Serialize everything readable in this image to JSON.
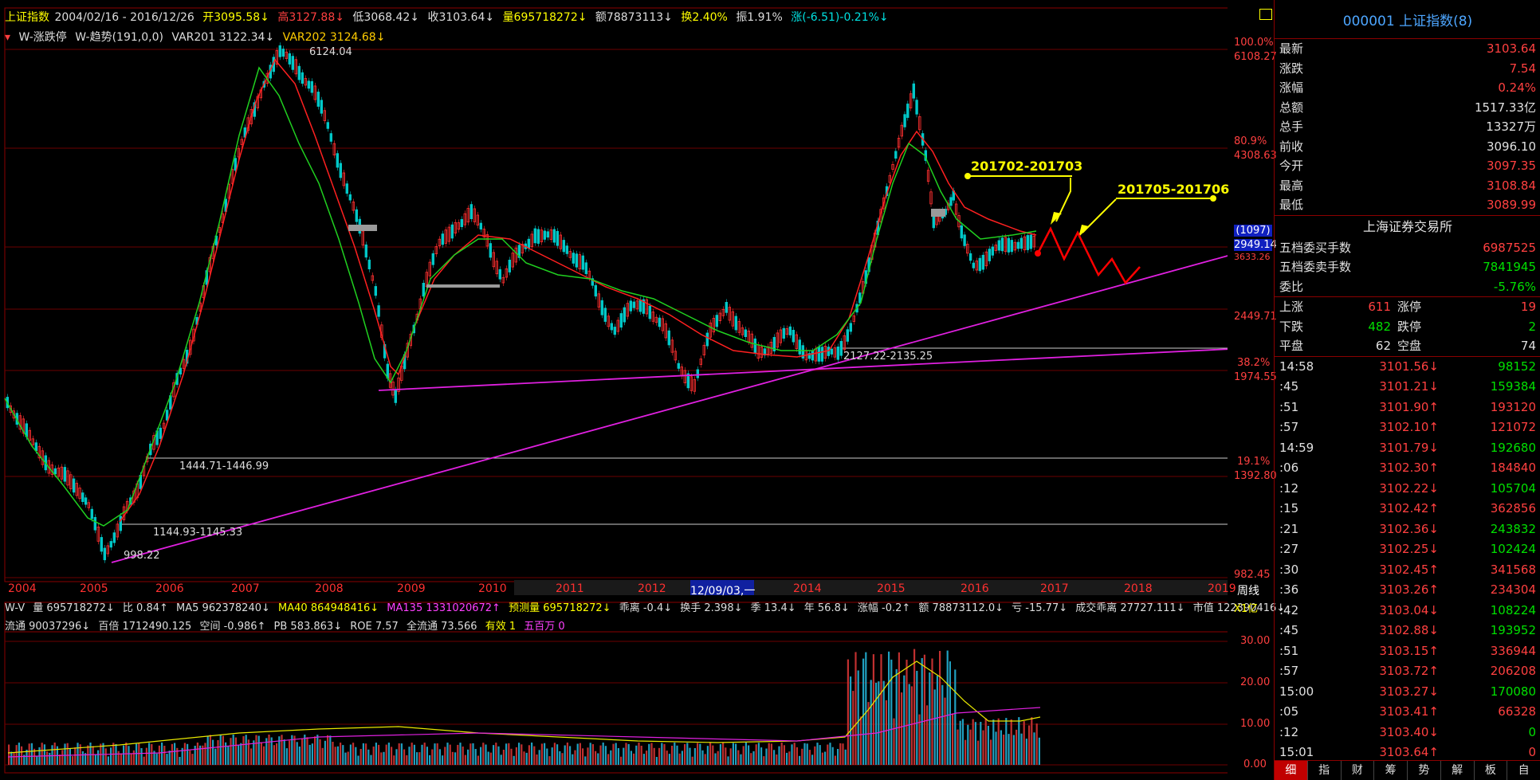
{
  "header": {
    "index_name": "上证指数",
    "date_range": "2004/02/16 - 2016/12/26",
    "open": "开3095.58↓",
    "high": "高3127.88↓",
    "low": "低3068.42↓",
    "close": "收3103.64↓",
    "volume": "量695718272↓",
    "amount": "额78873113↓",
    "turnover": "换2.40%",
    "amplitude": "振1.91%",
    "change": "涨(-6.51)-0.21%↓"
  },
  "indicators_line": {
    "a": "W-涨跌停",
    "b": "W-趋势(191,0,0)",
    "c": "VAR201 3122.34↓",
    "d": "VAR202 3124.68↓"
  },
  "price_axis": {
    "pct100": "100.0%",
    "p6108": "6108.27",
    "pct80": "80.9%",
    "p4308": "4308.63",
    "cur_vol": "(1097)",
    "cur_price": "2949.14",
    "p3633": "3633.26",
    "p2449": "2449.71",
    "pct38": "38.2%",
    "p1974": "1974.55",
    "pct19": "19.1%",
    "p1392": "1392.80",
    "p982": "982.45"
  },
  "chart_labels": {
    "peak": "6124.04",
    "low2005": "998.22",
    "range1": "1444.71-1446.99",
    "range2": "1144.93-1145.33",
    "range3": "2127.22-2135.25",
    "proj1": "201702-201703",
    "proj2": "201705-201706"
  },
  "years": [
    "2004",
    "2005",
    "2006",
    "2007",
    "2008",
    "2009",
    "2010",
    "2011",
    "2012",
    "12/09/03,一",
    "2014",
    "2015",
    "2016",
    "2017",
    "2018",
    "2019"
  ],
  "period": "周线",
  "vol_line1": {
    "a": "W-V",
    "b": "量 695718272↓",
    "c": "比 0.84↑",
    "d": "MA5 962378240↓",
    "e": "MA40 864948416↓",
    "f": "MA135 1331020672↑",
    "g": "预测量 695718272↓",
    "h": "乖离 -0.4↓",
    "i": "换手 2.398↓",
    "j": "季 13.4↓",
    "k": "年 56.8↓",
    "l": "涨幅 -0.2↑",
    "m": "额 78873112.0↓",
    "n": "亏 -15.77↓",
    "o": "成交乖离 27727.111↓",
    "p": "市值 122390416↓"
  },
  "vol_line2": {
    "a": "流通 90037296↓",
    "b": "百倍 1712490.125",
    "c": "空间 -0.986↑",
    "d": "PB 583.863↓",
    "e": "ROE 7.57",
    "f": "全流通 73.566",
    "g": "有效 1",
    "h": "五百万 0"
  },
  "vol_axis": {
    "unit": "X1亿",
    "v30": "30.00",
    "v20": "20.00",
    "v10": "10.00",
    "v0": "0.00"
  },
  "side": {
    "title": "000001 上证指数(8)",
    "quotes": [
      {
        "label": "最新",
        "value": "3103.64",
        "color": "#ff4040"
      },
      {
        "label": "涨跌",
        "value": "7.54",
        "color": "#ff4040"
      },
      {
        "label": "涨幅",
        "value": "0.24%",
        "color": "#ff4040"
      },
      {
        "label": "总额",
        "value": "1517.33亿",
        "color": "#e0e0e0"
      },
      {
        "label": "总手",
        "value": "13327万",
        "color": "#e0e0e0"
      },
      {
        "label": "前收",
        "value": "3096.10",
        "color": "#e0e0e0"
      },
      {
        "label": "今开",
        "value": "3097.35",
        "color": "#ff4040"
      },
      {
        "label": "最高",
        "value": "3108.84",
        "color": "#ff4040"
      },
      {
        "label": "最低",
        "value": "3089.99",
        "color": "#ff4040"
      }
    ],
    "exchange": "上海证券交易所",
    "book": [
      {
        "label": "五档委买手数",
        "value": "6987525",
        "color": "#ff4040"
      },
      {
        "label": "五档委卖手数",
        "value": "7841945",
        "color": "#00e000"
      },
      {
        "label": "委比",
        "value": "-5.76%",
        "color": "#00e000"
      }
    ],
    "breadth": [
      {
        "l1": "上涨",
        "v1": "611",
        "l2": "涨停",
        "v2": "19",
        "c": "#ff4040"
      },
      {
        "l1": "下跌",
        "v1": "482",
        "l2": "跌停",
        "v2": "2",
        "c": "#00e000"
      },
      {
        "l1": "平盘",
        "v1": "62",
        "l2": "空盘",
        "v2": "74",
        "c": "#e0e0e0"
      }
    ],
    "ticks": [
      {
        "t": "14:58",
        "p": "3101.56↓",
        "v": "98152",
        "vc": "#00e000"
      },
      {
        "t": ":45",
        "p": "3101.21↓",
        "v": "159384",
        "vc": "#00e000"
      },
      {
        "t": ":51",
        "p": "3101.90↑",
        "v": "193120",
        "vc": "#ff4040"
      },
      {
        "t": ":57",
        "p": "3102.10↑",
        "v": "121072",
        "vc": "#ff4040"
      },
      {
        "t": "14:59",
        "p": "3101.79↓",
        "v": "192680",
        "vc": "#00e000"
      },
      {
        "t": ":06",
        "p": "3102.30↑",
        "v": "184840",
        "vc": "#ff4040"
      },
      {
        "t": ":12",
        "p": "3102.22↓",
        "v": "105704",
        "vc": "#00e000"
      },
      {
        "t": ":15",
        "p": "3102.42↑",
        "v": "362856",
        "vc": "#ff4040"
      },
      {
        "t": ":21",
        "p": "3102.36↓",
        "v": "243832",
        "vc": "#00e000"
      },
      {
        "t": ":27",
        "p": "3102.25↓",
        "v": "102424",
        "vc": "#00e000"
      },
      {
        "t": ":30",
        "p": "3102.45↑",
        "v": "341568",
        "vc": "#ff4040"
      },
      {
        "t": ":36",
        "p": "3103.26↑",
        "v": "234304",
        "vc": "#ff4040"
      },
      {
        "t": ":42",
        "p": "3103.04↓",
        "v": "108224",
        "vc": "#00e000"
      },
      {
        "t": ":45",
        "p": "3102.88↓",
        "v": "193952",
        "vc": "#00e000"
      },
      {
        "t": ":51",
        "p": "3103.15↑",
        "v": "336944",
        "vc": "#ff4040"
      },
      {
        "t": ":57",
        "p": "3103.72↑",
        "v": "206208",
        "vc": "#ff4040"
      },
      {
        "t": "15:00",
        "p": "3103.27↓",
        "v": "170080",
        "vc": "#00e000"
      },
      {
        "t": ":05",
        "p": "3103.41↑",
        "v": "66328",
        "vc": "#ff4040"
      },
      {
        "t": ":12",
        "p": "3103.40↓",
        "v": "0",
        "vc": "#00e000"
      },
      {
        "t": "15:01",
        "p": "3103.64↑",
        "v": "0",
        "vc": "#ff4040"
      }
    ],
    "tabs": [
      "细",
      "指",
      "财",
      "筹",
      "势",
      "解",
      "板",
      "自"
    ]
  }
}
